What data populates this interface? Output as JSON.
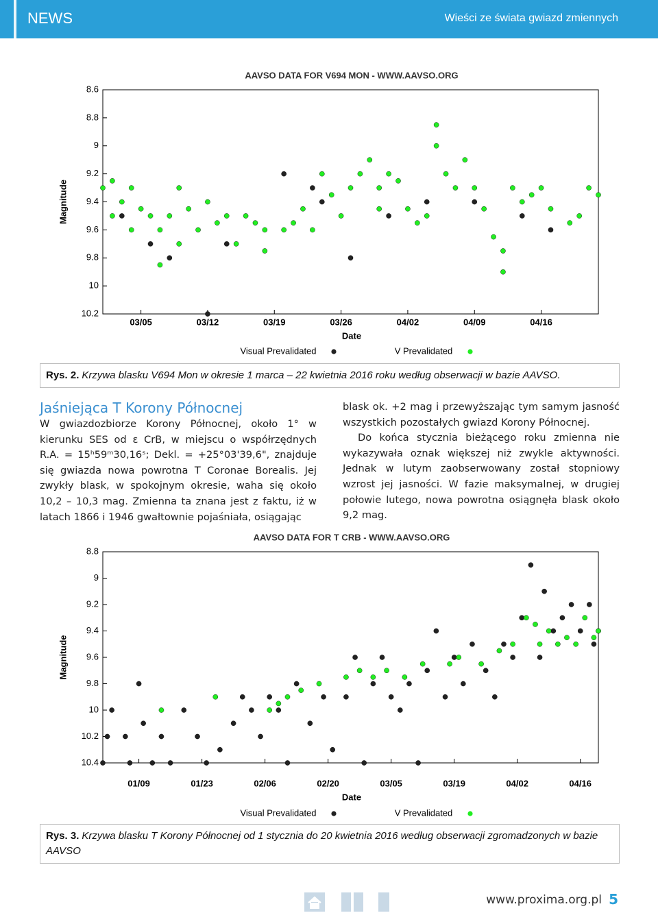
{
  "header": {
    "section": "NEWS",
    "subtitle": "Wieści ze świata gwiazd zmiennych"
  },
  "chart_data": [
    {
      "type": "scatter",
      "title": "AAVSO DATA FOR V694 MON - WWW.AAVSO.ORG",
      "xlabel": "Date",
      "ylabel": "Magnitude",
      "xlim": [
        "03/01",
        "04/22"
      ],
      "xticks": [
        "03/05",
        "03/12",
        "03/19",
        "03/26",
        "04/02",
        "04/09",
        "04/16"
      ],
      "ylim": [
        10.2,
        8.6
      ],
      "yticks": [
        10.2,
        10,
        9.8,
        9.6,
        9.4,
        9.2,
        9,
        8.8,
        8.6
      ],
      "grid": false,
      "series": [
        {
          "name": "Visual Prevalidated",
          "color": "#222222",
          "x": [
            "03/03",
            "03/06",
            "03/08",
            "03/12",
            "03/14",
            "03/20",
            "03/23",
            "03/24",
            "03/27",
            "03/31",
            "04/04",
            "04/09",
            "04/14",
            "04/17"
          ],
          "values": [
            9.5,
            9.7,
            9.8,
            10.2,
            9.7,
            9.2,
            9.3,
            9.4,
            9.8,
            9.5,
            9.4,
            9.4,
            9.5,
            9.6
          ]
        },
        {
          "name": "V Prevalidated",
          "color": "#22ee22",
          "x": [
            "03/01",
            "03/02",
            "03/02",
            "03/03",
            "03/04",
            "03/04",
            "03/05",
            "03/06",
            "03/07",
            "03/07",
            "03/08",
            "03/09",
            "03/09",
            "03/10",
            "03/11",
            "03/12",
            "03/13",
            "03/14",
            "03/15",
            "03/16",
            "03/17",
            "03/18",
            "03/18",
            "03/20",
            "03/21",
            "03/22",
            "03/23",
            "03/24",
            "03/25",
            "03/26",
            "03/27",
            "03/28",
            "03/29",
            "03/30",
            "03/30",
            "03/31",
            "04/01",
            "04/02",
            "04/03",
            "04/04",
            "04/05",
            "04/05",
            "04/06",
            "04/07",
            "04/08",
            "04/09",
            "04/10",
            "04/11",
            "04/12",
            "04/12",
            "04/13",
            "04/14",
            "04/15",
            "04/16",
            "04/17",
            "04/19",
            "04/20",
            "04/21",
            "04/22"
          ],
          "values": [
            9.3,
            9.25,
            9.5,
            9.4,
            9.3,
            9.6,
            9.45,
            9.5,
            9.6,
            9.85,
            9.5,
            9.3,
            9.7,
            9.45,
            9.6,
            9.4,
            9.55,
            9.5,
            9.7,
            9.5,
            9.55,
            9.6,
            9.75,
            9.6,
            9.55,
            9.45,
            9.6,
            9.2,
            9.35,
            9.5,
            9.3,
            9.2,
            9.1,
            9.3,
            9.45,
            9.2,
            9.25,
            9.45,
            9.55,
            9.5,
            9.0,
            8.85,
            9.2,
            9.3,
            9.1,
            9.3,
            9.45,
            9.65,
            9.75,
            9.9,
            9.3,
            9.4,
            9.35,
            9.3,
            9.45,
            9.55,
            9.5,
            9.3,
            9.35
          ]
        }
      ]
    },
    {
      "type": "scatter",
      "title": "AAVSO DATA FOR T CRB - WWW.AAVSO.ORG",
      "xlabel": "Date",
      "ylabel": "Magnitude",
      "xlim": [
        "01/01",
        "04/20"
      ],
      "xticks": [
        "01/09",
        "01/23",
        "02/06",
        "02/20",
        "03/05",
        "03/19",
        "04/02",
        "04/16"
      ],
      "ylim": [
        10.4,
        8.8
      ],
      "yticks": [
        10.4,
        10.2,
        10,
        9.8,
        9.6,
        9.4,
        9.2,
        9,
        8.8
      ],
      "grid": false,
      "series": [
        {
          "name": "Visual Prevalidated",
          "color": "#222222",
          "x": [
            "01/01",
            "01/02",
            "01/03",
            "01/06",
            "01/07",
            "01/09",
            "01/10",
            "01/12",
            "01/14",
            "01/16",
            "01/19",
            "01/22",
            "01/24",
            "01/27",
            "01/30",
            "02/01",
            "02/03",
            "02/05",
            "02/07",
            "02/09",
            "02/11",
            "02/13",
            "02/16",
            "02/19",
            "02/21",
            "02/24",
            "02/26",
            "02/28",
            "03/01",
            "03/03",
            "03/05",
            "03/07",
            "03/09",
            "03/11",
            "03/13",
            "03/15",
            "03/17",
            "03/19",
            "03/21",
            "03/23",
            "03/26",
            "03/28",
            "03/30",
            "04/01",
            "04/03",
            "04/05",
            "04/07",
            "04/08",
            "04/10",
            "04/12",
            "04/14",
            "04/16",
            "04/18",
            "04/19",
            "04/20"
          ],
          "values": [
            10.4,
            10.2,
            10.0,
            10.2,
            10.4,
            9.8,
            10.1,
            10.4,
            10.2,
            10.4,
            10.0,
            10.2,
            10.4,
            10.3,
            10.1,
            9.9,
            10.0,
            10.2,
            9.9,
            10.0,
            10.4,
            9.8,
            10.1,
            9.9,
            10.3,
            9.9,
            9.6,
            10.4,
            9.8,
            9.6,
            9.9,
            10.0,
            9.8,
            10.4,
            9.7,
            9.4,
            9.9,
            9.6,
            9.8,
            9.5,
            9.7,
            9.9,
            9.5,
            9.6,
            9.3,
            8.9,
            9.6,
            9.1,
            9.4,
            9.3,
            9.2,
            9.4,
            9.2,
            9.5,
            9.4
          ]
        },
        {
          "name": "V Prevalidated",
          "color": "#22ee22",
          "x": [
            "01/14",
            "01/26",
            "02/07",
            "02/09",
            "02/11",
            "02/14",
            "02/18",
            "02/24",
            "02/27",
            "03/01",
            "03/04",
            "03/08",
            "03/12",
            "03/18",
            "03/20",
            "03/25",
            "03/29",
            "04/01",
            "04/04",
            "04/06",
            "04/07",
            "04/09",
            "04/11",
            "04/13",
            "04/15",
            "04/17",
            "04/19",
            "04/20"
          ],
          "values": [
            10.0,
            9.9,
            10.0,
            9.95,
            9.9,
            9.85,
            9.8,
            9.75,
            9.7,
            9.75,
            9.7,
            9.75,
            9.65,
            9.65,
            9.6,
            9.65,
            9.55,
            9.5,
            9.3,
            9.35,
            9.5,
            9.4,
            9.5,
            9.45,
            9.5,
            9.3,
            9.45,
            9.4
          ]
        }
      ]
    }
  ],
  "captions": [
    {
      "label": "Rys. 2.",
      "text": "Krzywa blasku V694 Mon w okresie 1 marca – 22 kwietnia 2016 roku według obserwacji w bazie AAVSO."
    },
    {
      "label": "Rys. 3.",
      "text": "Krzywa blasku T Korony Północnej od 1 stycznia do 20 kwietnia 2016 według obserwacji zgromadzonych w bazie AAVSO"
    }
  ],
  "article": {
    "heading": "Jaśniejąca T Korony Północnej",
    "left": "W gwiazdozbiorze Korony Północnej, około 1° w kierunku SES od ε CrB, w miejscu o współrzędnych R.A. = 15ʰ59ᵐ30,16ˢ; Dekl. = +25°03'39,6\", znajduje się gwiazda nowa powrotna T Coronae Borealis. Jej zwykły blask, w spokojnym okresie, waha się około 10,2 – 10,3 mag. Zmienna ta znana jest z faktu, iż w latach 1866 i 1946 gwałtownie pojaśniała, osiągając",
    "right": [
      "blask ok. +2 mag i przewyższając tym samym jasność wszystkich pozostałych gwiazd Korony Północnej.",
      "Do końca stycznia bieżącego roku zmienna nie wykazywała oznak większej niż zwykle aktywności. Jednak w lutym zaobserwowany został stopniowy wzrost jej jasności. W fazie maksymalnej, w drugiej połowie lutego, nowa powrotna osiągnęła blask około 9,2 mag."
    ]
  },
  "footer": {
    "url": "www.proxima.org.pl",
    "page": 5
  }
}
